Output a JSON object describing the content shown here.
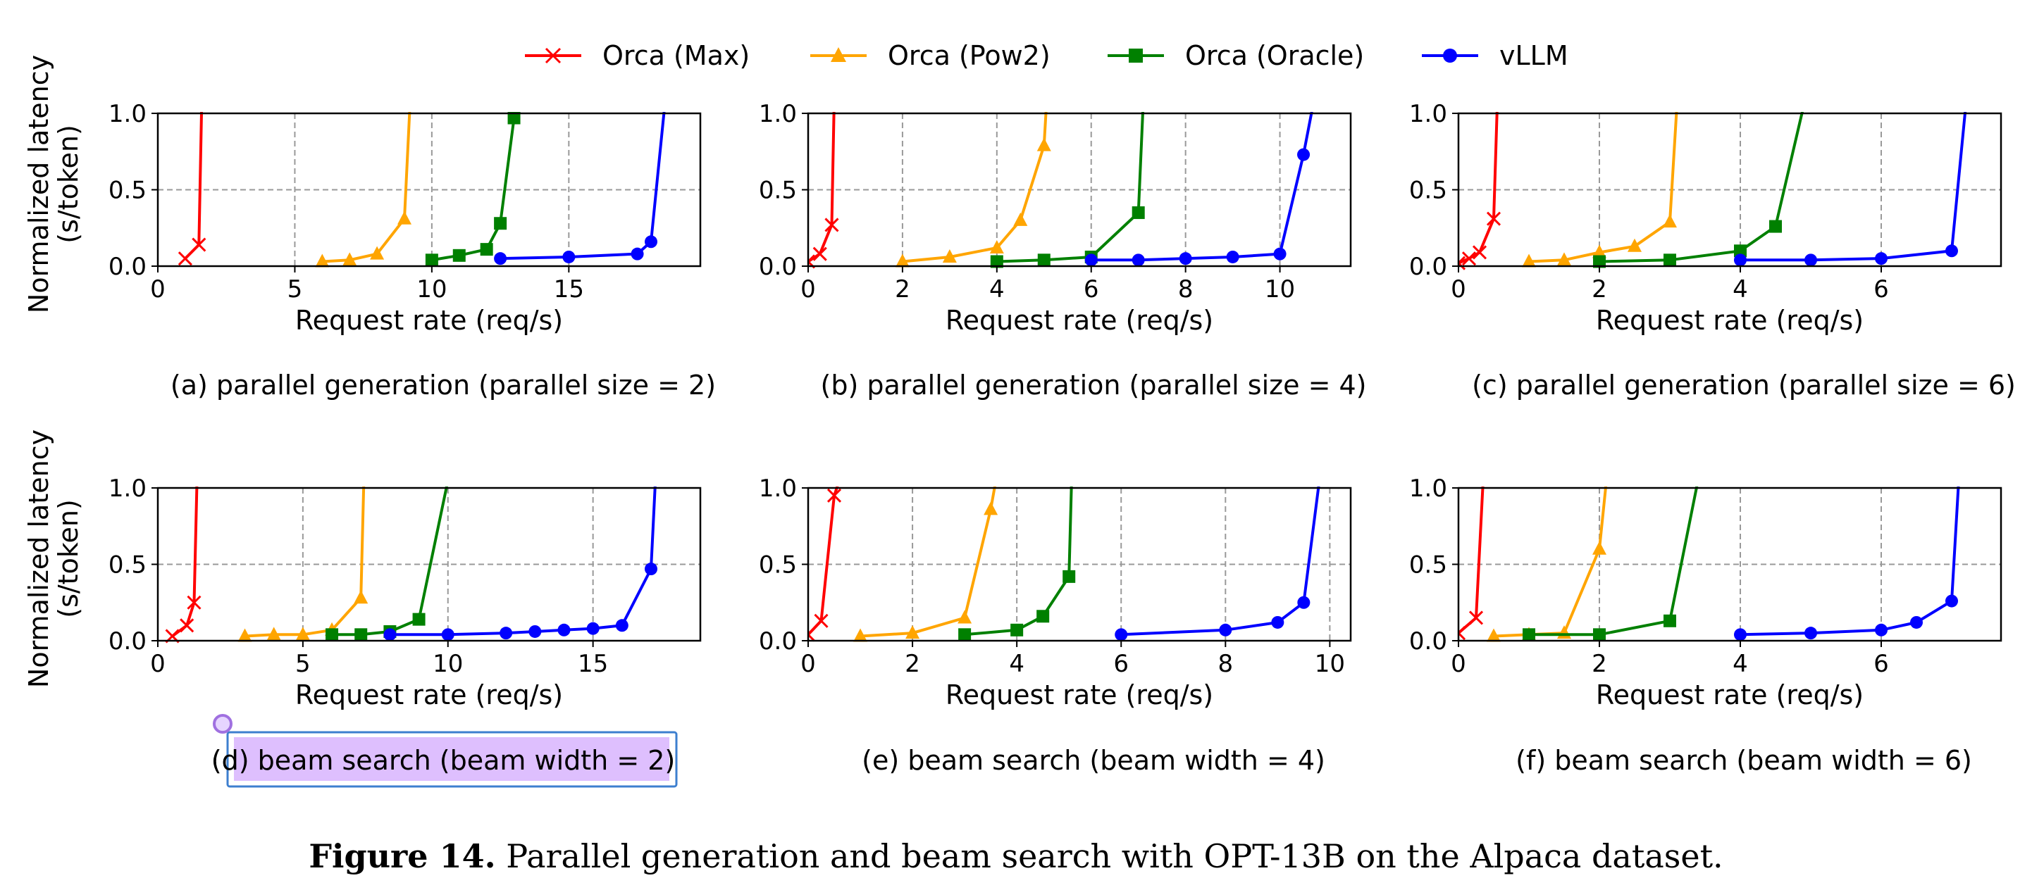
{
  "legend": [
    {
      "name": "Orca (Max)",
      "color": "#ff0000",
      "marker": "x"
    },
    {
      "name": "Orca (Pow2)",
      "color": "#ffa500",
      "marker": "triangle"
    },
    {
      "name": "Orca (Oracle)",
      "color": "#008000",
      "marker": "square"
    },
    {
      "name": "vLLM",
      "color": "#0000ff",
      "marker": "circle"
    }
  ],
  "highlight": {
    "color": "#d8b4fe",
    "border": "#3d7fcf",
    "cursor_color": "#a070e0"
  },
  "caption": {
    "label": "Figure 14.",
    "text": " Parallel generation and beam search with OPT-13B on the Alpaca dataset."
  },
  "chart_data": [
    {
      "type": "line",
      "caption": "(a) parallel generation (parallel size = 2)",
      "xlabel": "Request rate (req/s)",
      "ylabel": [
        "Normalized latency",
        "(s/token)"
      ],
      "xlim": [
        0,
        19.8
      ],
      "ylim": [
        0,
        1.0
      ],
      "xticks": [
        0,
        5,
        10,
        15
      ],
      "yticks": [
        0.0,
        0.5,
        1.0
      ],
      "grid": true,
      "series": [
        {
          "name": "Orca (Max)",
          "x": [
            1.0,
            1.5,
            1.6
          ],
          "y": [
            0.05,
            0.14,
            1.05
          ]
        },
        {
          "name": "Orca (Pow2)",
          "x": [
            6.0,
            7.0,
            8.0,
            9.0,
            9.2
          ],
          "y": [
            0.03,
            0.04,
            0.08,
            0.31,
            1.05
          ]
        },
        {
          "name": "Orca (Oracle)",
          "x": [
            10.0,
            11.0,
            12.0,
            12.5,
            13.0
          ],
          "y": [
            0.04,
            0.07,
            0.11,
            0.28,
            0.97
          ]
        },
        {
          "name": "vLLM",
          "x": [
            12.5,
            15.0,
            17.5,
            18.0,
            18.5
          ],
          "y": [
            0.05,
            0.06,
            0.08,
            0.16,
            1.05
          ]
        }
      ]
    },
    {
      "type": "line",
      "caption": "(b) parallel generation (parallel size = 4)",
      "xlabel": "Request rate (req/s)",
      "ylabel": [
        "",
        ""
      ],
      "xlim": [
        0,
        11.5
      ],
      "ylim": [
        0,
        1.0
      ],
      "xticks": [
        0,
        2,
        4,
        6,
        8,
        10
      ],
      "yticks": [
        0.0,
        0.5,
        1.0
      ],
      "grid": true,
      "series": [
        {
          "name": "Orca (Max)",
          "x": [
            0.0,
            0.25,
            0.5,
            0.55
          ],
          "y": [
            0.03,
            0.08,
            0.27,
            1.05
          ]
        },
        {
          "name": "Orca (Pow2)",
          "x": [
            2.0,
            3.0,
            4.0,
            4.5,
            5.0,
            5.05
          ],
          "y": [
            0.03,
            0.06,
            0.12,
            0.3,
            0.79,
            1.05
          ]
        },
        {
          "name": "Orca (Oracle)",
          "x": [
            4.0,
            5.0,
            6.0,
            7.0,
            7.1
          ],
          "y": [
            0.03,
            0.04,
            0.06,
            0.35,
            1.05
          ]
        },
        {
          "name": "vLLM",
          "x": [
            6.0,
            7.0,
            8.0,
            9.0,
            10.0,
            10.5,
            10.7
          ],
          "y": [
            0.04,
            0.04,
            0.05,
            0.06,
            0.08,
            0.73,
            1.05
          ]
        }
      ]
    },
    {
      "type": "line",
      "caption": "(c) parallel generation (parallel size = 6)",
      "xlabel": "Request rate (req/s)",
      "ylabel": [
        "",
        ""
      ],
      "xlim": [
        0,
        7.7
      ],
      "ylim": [
        0,
        1.0
      ],
      "xticks": [
        0,
        2,
        4,
        6
      ],
      "yticks": [
        0.0,
        0.5,
        1.0
      ],
      "grid": true,
      "series": [
        {
          "name": "Orca (Max)",
          "x": [
            0.0,
            0.15,
            0.3,
            0.5,
            0.55
          ],
          "y": [
            0.02,
            0.05,
            0.09,
            0.31,
            1.05
          ]
        },
        {
          "name": "Orca (Pow2)",
          "x": [
            1.0,
            1.5,
            2.0,
            2.5,
            3.0,
            3.1
          ],
          "y": [
            0.03,
            0.04,
            0.09,
            0.13,
            0.29,
            1.05
          ]
        },
        {
          "name": "Orca (Oracle)",
          "x": [
            2.0,
            3.0,
            4.0,
            4.5,
            4.9
          ],
          "y": [
            0.03,
            0.04,
            0.1,
            0.26,
            1.05
          ]
        },
        {
          "name": "vLLM",
          "x": [
            4.0,
            5.0,
            6.0,
            7.0,
            7.2
          ],
          "y": [
            0.04,
            0.04,
            0.05,
            0.1,
            1.05
          ]
        }
      ]
    },
    {
      "type": "line",
      "caption": "(d) beam search (beam width = 2)",
      "xlabel": "Request rate (req/s)",
      "ylabel": [
        "Normalized latency",
        "(s/token)"
      ],
      "xlim": [
        0,
        18.7
      ],
      "ylim": [
        0,
        1.0
      ],
      "xticks": [
        0,
        5,
        10,
        15
      ],
      "yticks": [
        0.0,
        0.5,
        1.0
      ],
      "grid": true,
      "series": [
        {
          "name": "Orca (Max)",
          "x": [
            0.5,
            1.0,
            1.25,
            1.35
          ],
          "y": [
            0.03,
            0.1,
            0.25,
            1.05
          ]
        },
        {
          "name": "Orca (Pow2)",
          "x": [
            3.0,
            4.0,
            5.0,
            6.0,
            7.0,
            7.1
          ],
          "y": [
            0.03,
            0.04,
            0.04,
            0.07,
            0.28,
            1.05
          ]
        },
        {
          "name": "Orca (Oracle)",
          "x": [
            6.0,
            7.0,
            8.0,
            9.0,
            10.0
          ],
          "y": [
            0.04,
            0.04,
            0.06,
            0.14,
            1.05
          ]
        },
        {
          "name": "vLLM",
          "x": [
            8.0,
            10.0,
            12.0,
            13.0,
            14.0,
            15.0,
            16.0,
            17.0,
            17.15
          ],
          "y": [
            0.04,
            0.04,
            0.05,
            0.06,
            0.07,
            0.08,
            0.1,
            0.47,
            1.05
          ]
        }
      ]
    },
    {
      "type": "line",
      "caption": "(e) beam search (beam width = 4)",
      "xlabel": "Request rate (req/s)",
      "ylabel": [
        "",
        ""
      ],
      "xlim": [
        0,
        10.4
      ],
      "ylim": [
        0,
        1.0
      ],
      "xticks": [
        0,
        2,
        4,
        6,
        8,
        10
      ],
      "yticks": [
        0.0,
        0.5,
        1.0
      ],
      "grid": true,
      "series": [
        {
          "name": "Orca (Max)",
          "x": [
            0.0,
            0.25,
            0.5,
            0.6
          ],
          "y": [
            0.04,
            0.13,
            0.95,
            1.05
          ]
        },
        {
          "name": "Orca (Pow2)",
          "x": [
            1.0,
            2.0,
            3.0,
            3.5,
            3.6
          ],
          "y": [
            0.03,
            0.05,
            0.15,
            0.86,
            1.05
          ]
        },
        {
          "name": "Orca (Oracle)",
          "x": [
            3.0,
            4.0,
            4.5,
            5.0,
            5.05
          ],
          "y": [
            0.04,
            0.07,
            0.16,
            0.42,
            1.05
          ]
        },
        {
          "name": "vLLM",
          "x": [
            6.0,
            8.0,
            9.0,
            9.5,
            9.8
          ],
          "y": [
            0.04,
            0.07,
            0.12,
            0.25,
            1.05
          ]
        }
      ]
    },
    {
      "type": "line",
      "caption": "(f) beam search (beam width = 6)",
      "xlabel": "Request rate (req/s)",
      "ylabel": [
        "",
        ""
      ],
      "xlim": [
        0,
        7.7
      ],
      "ylim": [
        0,
        1.0
      ],
      "xticks": [
        0,
        2,
        4,
        6
      ],
      "yticks": [
        0.0,
        0.5,
        1.0
      ],
      "grid": true,
      "series": [
        {
          "name": "Orca (Max)",
          "x": [
            0.0,
            0.25,
            0.35
          ],
          "y": [
            0.05,
            0.15,
            1.05
          ]
        },
        {
          "name": "Orca (Pow2)",
          "x": [
            0.5,
            1.0,
            1.5,
            2.0,
            2.1
          ],
          "y": [
            0.03,
            0.04,
            0.05,
            0.6,
            1.05
          ]
        },
        {
          "name": "Orca (Oracle)",
          "x": [
            1.0,
            2.0,
            3.0,
            3.4
          ],
          "y": [
            0.04,
            0.04,
            0.13,
            1.05
          ]
        },
        {
          "name": "vLLM",
          "x": [
            4.0,
            5.0,
            6.0,
            6.5,
            7.0,
            7.1
          ],
          "y": [
            0.04,
            0.05,
            0.07,
            0.12,
            0.26,
            1.05
          ]
        }
      ]
    }
  ]
}
